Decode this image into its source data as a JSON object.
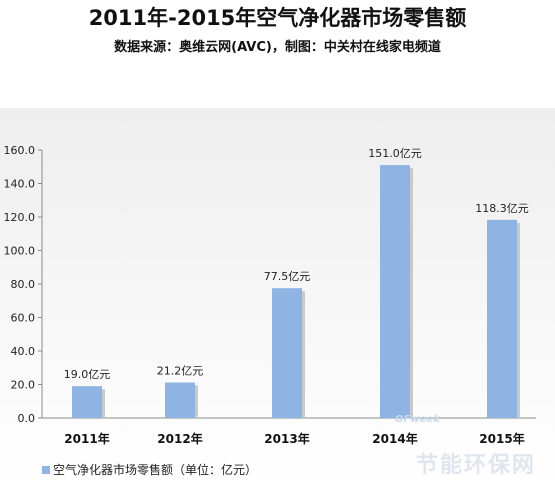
{
  "title": "2011年-2015年空气净化器市场零售额",
  "subtitle": "数据来源：奥维云网(AVC)，制图：中关村在线家电频道",
  "legend_label": "空气净化器市场零售额（单位：亿元）",
  "watermark": {
    "brand": "OFweek",
    "site": "节能环保网"
  },
  "chart_data": {
    "type": "bar",
    "categories": [
      "2011年",
      "2012年",
      "2013年",
      "2014年",
      "2015年"
    ],
    "values": [
      19.0,
      21.2,
      77.5,
      151.0,
      118.3
    ],
    "data_labels": [
      "19.0亿元",
      "21.2亿元",
      "77.5亿元",
      "151.0亿元",
      "118.3亿元"
    ],
    "y_ticks": [
      "0.0",
      "20.0",
      "40.0",
      "60.0",
      "80.0",
      "100.0",
      "120.0",
      "140.0",
      "160.0"
    ],
    "ylim": [
      0,
      160
    ],
    "grid": false,
    "legend_position": "bottom-left",
    "bar_color": "#8eb4e3",
    "bar_shadow_color": "#c9c9c9"
  }
}
